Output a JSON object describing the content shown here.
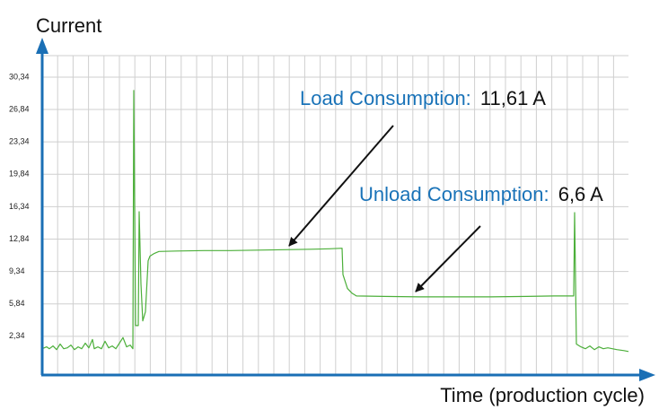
{
  "chart_data": {
    "type": "line",
    "ylabel": "Current",
    "xlabel": "Time (production cycle)",
    "ylim": [
      -1.84,
      32.66
    ],
    "xlim": [
      0,
      678
    ],
    "yticks": [
      {
        "value": 2.34,
        "label": "2,34"
      },
      {
        "value": 5.84,
        "label": "5,84"
      },
      {
        "value": 9.34,
        "label": "9,34"
      },
      {
        "value": 12.84,
        "label": "12,84"
      },
      {
        "value": 16.34,
        "label": "16,34"
      },
      {
        "value": 19.84,
        "label": "19,84"
      },
      {
        "value": 23.34,
        "label": "23,34"
      },
      {
        "value": 26.84,
        "label": "26,84"
      },
      {
        "value": 30.34,
        "label": "30,34"
      }
    ],
    "grid": true,
    "series": [
      {
        "name": "Current",
        "color": "#4caf3a",
        "x": [
          0,
          5,
          8,
          12,
          16,
          20,
          24,
          28,
          32,
          36,
          40,
          44,
          48,
          52,
          56,
          58,
          62,
          66,
          70,
          74,
          78,
          82,
          86,
          90,
          94,
          98,
          101,
          102,
          104,
          107,
          108,
          110,
          112,
          115,
          118,
          120,
          125,
          130,
          150,
          180,
          210,
          240,
          270,
          300,
          320,
          334,
          335,
          340,
          345,
          350,
          380,
          420,
          460,
          500,
          540,
          570,
          592,
          593,
          595,
          600,
          605,
          610,
          615,
          620,
          625,
          630,
          640,
          648,
          653
        ],
        "values": [
          1.0,
          1.2,
          1.0,
          1.3,
          0.9,
          1.5,
          1.0,
          1.1,
          1.4,
          0.9,
          1.2,
          1.0,
          1.6,
          1.1,
          2.0,
          1.0,
          1.2,
          1.0,
          1.8,
          1.1,
          1.3,
          1.0,
          1.6,
          2.2,
          1.2,
          1.4,
          1.0,
          28.9,
          3.5,
          3.5,
          15.8,
          8.0,
          4.0,
          5.0,
          10.5,
          11.0,
          11.3,
          11.5,
          11.55,
          11.6,
          11.6,
          11.65,
          11.7,
          11.75,
          11.8,
          11.85,
          9.0,
          7.5,
          7.0,
          6.7,
          6.65,
          6.6,
          6.6,
          6.6,
          6.65,
          6.7,
          6.7,
          15.7,
          1.5,
          1.2,
          1.0,
          1.3,
          0.9,
          1.2,
          1.0,
          1.1,
          0.9,
          0.8,
          0.7
        ]
      }
    ],
    "annotations": [
      {
        "label": "Load Consumption:",
        "value": "11,61 A"
      },
      {
        "label": "Unload Consumption:",
        "value": "6,6 A"
      }
    ]
  }
}
